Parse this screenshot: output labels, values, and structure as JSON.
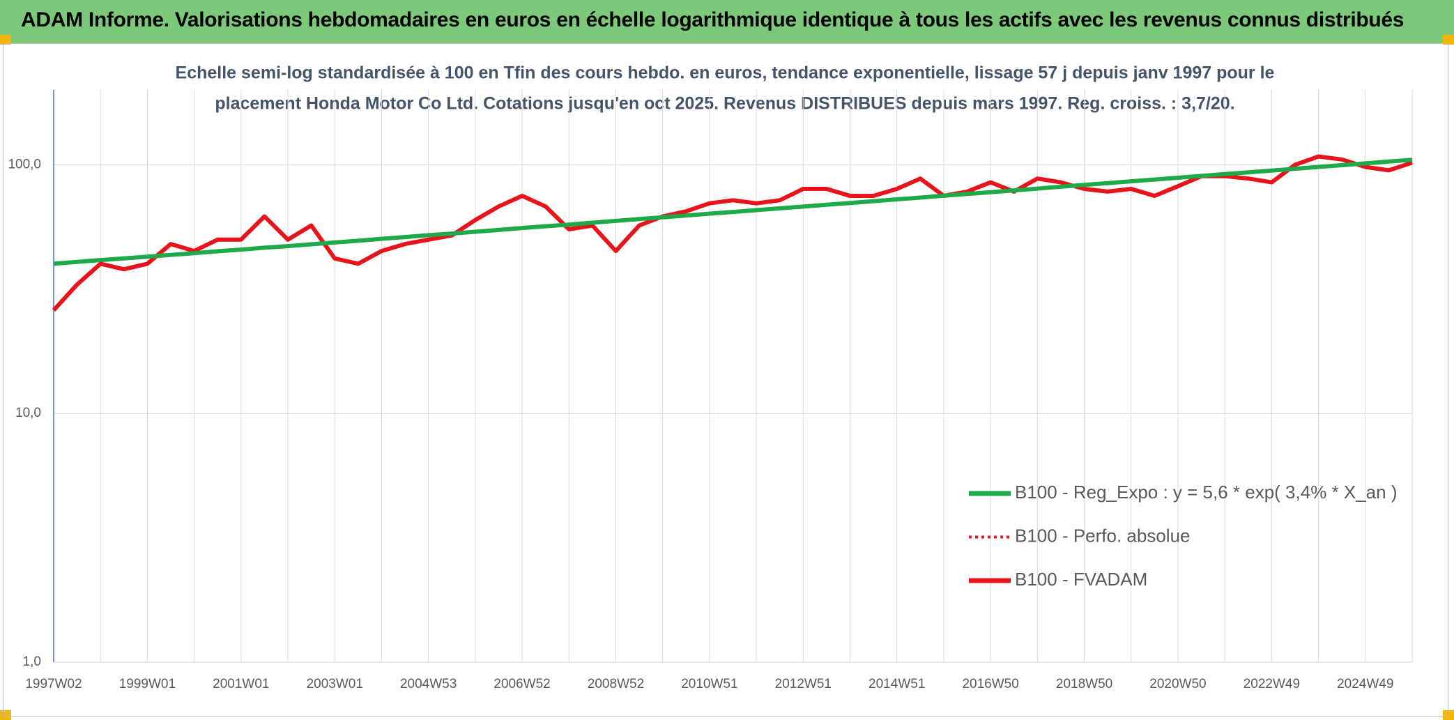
{
  "chart_data": {
    "type": "line",
    "title": "ADAM Informe. Valorisations hebdomadaires en euros en échelle logarithmique identique à tous les actifs avec les revenus connus distribués",
    "subtitle": [
      "Echelle semi-log standardisée à 100 en Tfin des cours hebdo. en euros, tendance exponentielle, lissage 57 j depuis janv 1997 pour le",
      "placement Honda Motor Co Ltd. Cotations jusqu'en oct 2025. Revenus DISTRIBUES depuis mars 1997. Reg. croiss. : 3,7/20."
    ],
    "categories": [
      "1997W02",
      null,
      null,
      null,
      "1999W01",
      null,
      null,
      null,
      "2001W01",
      null,
      null,
      null,
      "2003W01",
      null,
      null,
      null,
      "2004W53",
      null,
      null,
      null,
      "2006W52",
      null,
      null,
      null,
      "2008W52",
      null,
      null,
      null,
      "2010W51",
      null,
      null,
      null,
      "2012W51",
      null,
      null,
      null,
      "2014W51",
      null,
      null,
      null,
      "2016W50",
      null,
      null,
      null,
      "2018W50",
      null,
      null,
      null,
      "2020W50",
      null,
      null,
      null,
      "2022W49",
      null,
      null,
      null,
      "2024W49",
      null,
      null
    ],
    "series": [
      {
        "name": "B100 - Reg_Expo : y = 5,6 * exp( 3,4% *  X_an )",
        "color": "#1faa4a",
        "style": "solid",
        "values": [
          40.0,
          40.7,
          41.4,
          42.0,
          42.7,
          43.4,
          44.1,
          44.9,
          45.6,
          46.4,
          47.1,
          47.9,
          48.7,
          49.5,
          50.4,
          51.2,
          52.1,
          52.9,
          53.8,
          54.7,
          55.7,
          56.6,
          57.5,
          58.5,
          59.5,
          60.5,
          61.5,
          62.5,
          63.6,
          64.6,
          65.7,
          66.8,
          67.9,
          69.1,
          70.2,
          71.4,
          72.6,
          73.8,
          75.1,
          76.3,
          77.6,
          78.9,
          80.2,
          81.6,
          83.0,
          84.4,
          85.8,
          87.2,
          88.7,
          90.2,
          91.7,
          93.2,
          94.8,
          96.4,
          98.0,
          99.6,
          101.3,
          103.0,
          104.7
        ]
      },
      {
        "name": "B100 - Perfo. absolue",
        "color": "#e8141b",
        "style": "dotted",
        "values": [
          26,
          33,
          40,
          38,
          40,
          48,
          45,
          50,
          50,
          62,
          50,
          57,
          42,
          40,
          45,
          48,
          50,
          52,
          60,
          68,
          75,
          68,
          55,
          57,
          45,
          57,
          62,
          65,
          70,
          72,
          70,
          72,
          80,
          80,
          75,
          75,
          80,
          88,
          75,
          78,
          85,
          78,
          88,
          85,
          80,
          78,
          80,
          75,
          82,
          90,
          90,
          88,
          85,
          100,
          108,
          105,
          98,
          95,
          102
        ]
      },
      {
        "name": "B100 - FVADAM",
        "color": "#e8141b",
        "style": "solid",
        "values": [
          26,
          33,
          40,
          38,
          40,
          48,
          45,
          50,
          50,
          62,
          50,
          57,
          42,
          40,
          45,
          48,
          50,
          52,
          60,
          68,
          75,
          68,
          55,
          57,
          45,
          57,
          62,
          65,
          70,
          72,
          70,
          72,
          80,
          80,
          75,
          75,
          80,
          88,
          75,
          78,
          85,
          78,
          88,
          85,
          80,
          78,
          80,
          75,
          82,
          90,
          90,
          88,
          85,
          100,
          108,
          105,
          98,
          95,
          102
        ]
      }
    ],
    "ylim": [
      1,
      200
    ],
    "log_scale": true,
    "grid": true,
    "yticks": [
      {
        "value": 1,
        "label": "1,0"
      },
      {
        "value": 10,
        "label": "10,0"
      },
      {
        "value": 100,
        "label": "100,0"
      }
    ],
    "legend": "right"
  }
}
